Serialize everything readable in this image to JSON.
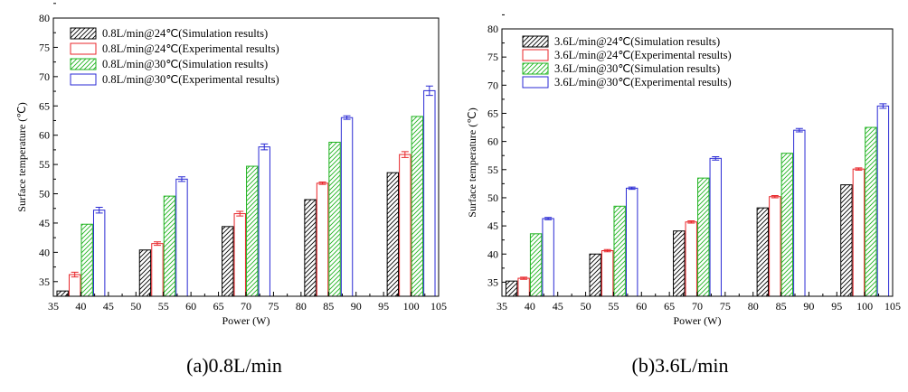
{
  "chart_data": [
    {
      "type": "bar",
      "panel_caption": "(a)0.8L/min",
      "title": "",
      "xlabel": "Power (W)",
      "ylabel": "Surface temperature (℃)",
      "xlim": [
        35,
        105
      ],
      "ylim": [
        32.5,
        80
      ],
      "xticks": [
        "35",
        "40",
        "45",
        "50",
        "55",
        "60",
        "65",
        "70",
        "75",
        "80",
        "85",
        "90",
        "95",
        "100",
        "105"
      ],
      "yticks": [
        "35",
        "40",
        "45",
        "50",
        "55",
        "60",
        "65",
        "70",
        "75",
        "80"
      ],
      "grid": false,
      "legend_position": "top-left",
      "categories": [
        40,
        55,
        70,
        85,
        100
      ],
      "series": [
        {
          "name": "0.8L/min@24℃(Simulation results)",
          "color": "#000000",
          "hatch": true,
          "values": [
            33.4,
            40.4,
            44.4,
            49.0,
            53.6
          ],
          "errors": [
            0,
            0,
            0,
            0,
            0
          ]
        },
        {
          "name": "0.8L/min@24℃(Experimental results)",
          "color": "#e8262a",
          "hatch": false,
          "values": [
            36.2,
            41.5,
            46.6,
            51.8,
            56.7
          ],
          "errors": [
            0.4,
            0.3,
            0.4,
            0.2,
            0.5
          ]
        },
        {
          "name": "0.8L/min@30℃(Simulation results)",
          "color": "#1fb31f",
          "hatch": true,
          "values": [
            44.8,
            49.6,
            54.7,
            58.8,
            63.2
          ],
          "errors": [
            0,
            0,
            0,
            0,
            0
          ]
        },
        {
          "name": "0.8L/min@30℃(Experimental results)",
          "color": "#2a2ad4",
          "hatch": false,
          "values": [
            47.2,
            52.5,
            58.0,
            63.0,
            67.6
          ],
          "errors": [
            0.5,
            0.4,
            0.5,
            0.3,
            0.8
          ]
        }
      ]
    },
    {
      "type": "bar",
      "panel_caption": "(b)3.6L/min",
      "title": "",
      "xlabel": "Power (W)",
      "ylabel": "Surface temperature (℃)",
      "xlim": [
        35,
        105
      ],
      "ylim": [
        32.5,
        80
      ],
      "xticks": [
        "35",
        "40",
        "45",
        "50",
        "55",
        "60",
        "65",
        "70",
        "75",
        "80",
        "85",
        "90",
        "95",
        "100",
        "105"
      ],
      "yticks": [
        "35",
        "40",
        "45",
        "50",
        "55",
        "60",
        "65",
        "70",
        "75",
        "80"
      ],
      "grid": false,
      "legend_position": "top-left",
      "categories": [
        40,
        55,
        70,
        85,
        100
      ],
      "series": [
        {
          "name": "3.6L/min@24℃(Simulation results)",
          "color": "#000000",
          "hatch": true,
          "values": [
            35.2,
            40.0,
            44.1,
            48.2,
            52.3
          ],
          "errors": [
            0,
            0,
            0,
            0,
            0
          ]
        },
        {
          "name": "3.6L/min@24℃(Experimental  results)",
          "color": "#e8262a",
          "hatch": false,
          "values": [
            35.7,
            40.6,
            45.7,
            50.2,
            55.1
          ],
          "errors": [
            0.2,
            0.2,
            0.2,
            0.2,
            0.2
          ]
        },
        {
          "name": "3.6L/min@30℃(Simulation results)",
          "color": "#1fb31f",
          "hatch": true,
          "values": [
            43.6,
            48.5,
            53.5,
            57.9,
            62.5
          ],
          "errors": [
            0,
            0,
            0,
            0,
            0
          ]
        },
        {
          "name": "3.6L/min@30℃(Experimental results)",
          "color": "#2a2ad4",
          "hatch": false,
          "values": [
            46.3,
            51.7,
            57.0,
            62.0,
            66.3
          ],
          "errors": [
            0.2,
            0.2,
            0.3,
            0.3,
            0.4
          ]
        }
      ]
    }
  ]
}
